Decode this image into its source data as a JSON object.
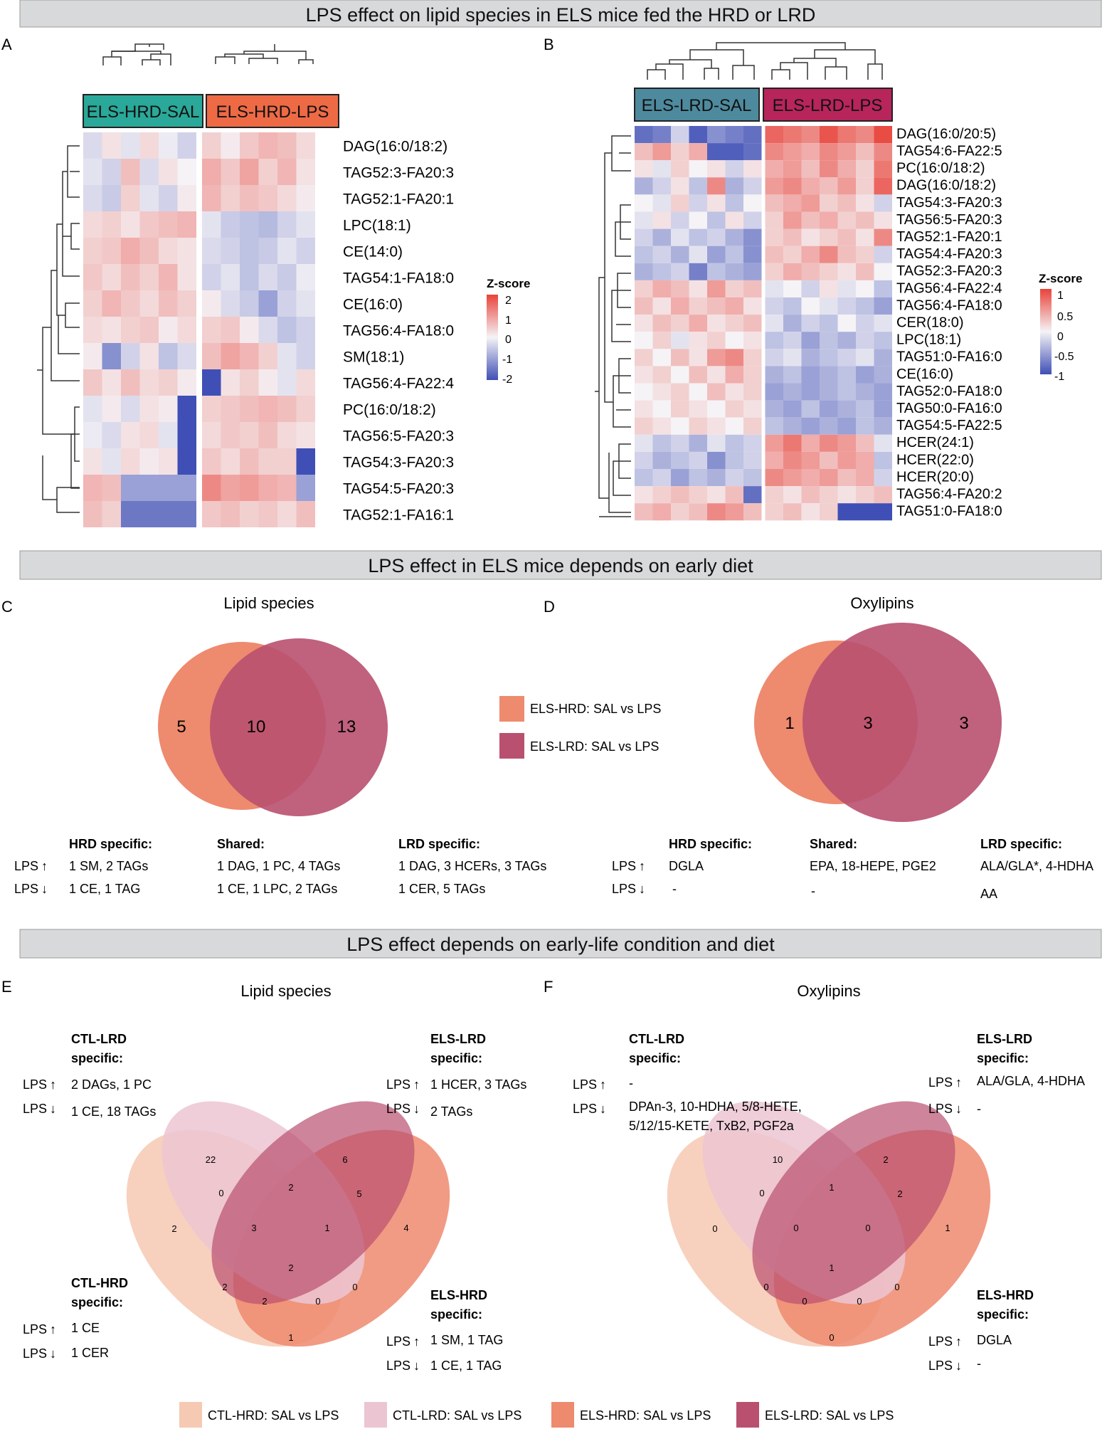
{
  "banners": [
    "LPS effect on lipid species in ELS mice fed the HRD or LRD",
    "LPS effect in ELS mice depends on early diet",
    "LPS effect depends on early-life condition and diet"
  ],
  "panel_letters": [
    "A",
    "B",
    "C",
    "D",
    "E",
    "F"
  ],
  "colors": {
    "banner_bg": "#d8d9da",
    "heat_low": "#3f4fb5",
    "heat_mid": "#f5f3f6",
    "heat_high": "#e8433a",
    "els_hrd": "#ee8a6e",
    "els_lrd": "#b9506f",
    "ctl_hrd": "#f6c9b3",
    "ctl_lrd": "#ecc5d2",
    "label_hrd_sal": "#2aa899",
    "label_hrd_lps": "#ee6a45",
    "label_lrd_sal": "#4e8a9e",
    "label_lrd_lps": "#b7255a"
  },
  "chart_data": [
    {
      "type": "heatmap",
      "panel": "A",
      "title": "",
      "groups": [
        "ELS-HRD-SAL",
        "ELS-HRD-LPS"
      ],
      "columns_per_group": [
        6,
        6
      ],
      "rows": [
        "DAG(16:0/18:2)",
        "TAG52:3-FA20:3",
        "TAG52:1-FA20:1",
        "LPC(18:1)",
        "CE(14:0)",
        "TAG54:1-FA18:0",
        "CE(16:0)",
        "TAG56:4-FA18:0",
        "SM(18:1)",
        "TAG56:4-FA22:4",
        "PC(16:0/18:2)",
        "TAG56:5-FA20:3",
        "TAG54:3-FA20:3",
        "TAG54:5-FA20:3",
        "TAG52:1-FA16:1"
      ],
      "legend_title": "Z-score",
      "scale_ticks": [
        "2",
        "1",
        "0",
        "-1",
        "-2"
      ],
      "scale_range": [
        -2,
        2
      ],
      "values": [
        [
          -0.3,
          0.2,
          -0.2,
          0.3,
          -0.1,
          -0.4,
          0.4,
          0.1,
          0.5,
          0.7,
          0.6,
          0.3
        ],
        [
          -0.2,
          -0.4,
          0.6,
          -0.3,
          0.2,
          0.0,
          0.8,
          0.5,
          0.9,
          0.4,
          0.7,
          0.2
        ],
        [
          -0.3,
          -0.5,
          0.4,
          -0.2,
          -0.4,
          0.1,
          0.7,
          0.4,
          0.6,
          0.5,
          0.3,
          0.1
        ],
        [
          0.3,
          0.4,
          0.2,
          0.5,
          0.6,
          0.7,
          -0.2,
          -0.5,
          -0.6,
          -0.7,
          -0.4,
          -0.2
        ],
        [
          0.4,
          0.5,
          0.8,
          0.6,
          0.3,
          0.2,
          -0.3,
          -0.4,
          -0.6,
          -0.5,
          -0.2,
          -0.4
        ],
        [
          0.5,
          0.3,
          0.6,
          0.4,
          0.7,
          0.2,
          -0.4,
          -0.2,
          -0.6,
          -0.3,
          -0.5,
          -0.1
        ],
        [
          0.4,
          0.7,
          0.5,
          0.3,
          0.6,
          0.4,
          0.1,
          -0.3,
          -0.5,
          -1.0,
          -0.4,
          -0.2
        ],
        [
          0.3,
          0.2,
          0.4,
          0.5,
          0.1,
          0.3,
          0.4,
          0.5,
          0.1,
          -0.3,
          -0.6,
          -0.4
        ],
        [
          0.1,
          -1.2,
          -0.4,
          0.2,
          -0.6,
          -0.3,
          0.6,
          0.9,
          0.7,
          0.4,
          -0.2,
          -0.4
        ],
        [
          0.5,
          0.2,
          0.6,
          0.3,
          0.4,
          0.1,
          -2.0,
          0.2,
          0.4,
          0.1,
          -0.2,
          0.3
        ],
        [
          -0.2,
          0.1,
          -0.3,
          0.2,
          0.1,
          -2.0,
          0.4,
          0.5,
          0.6,
          0.7,
          0.6,
          0.4
        ],
        [
          -0.1,
          -0.3,
          0.2,
          0.3,
          -0.2,
          -2.0,
          0.3,
          0.5,
          0.4,
          0.6,
          0.3,
          0.2
        ],
        [
          0.2,
          -0.2,
          0.3,
          0.1,
          0.2,
          -2.0,
          0.5,
          0.3,
          0.6,
          0.4,
          0.4,
          -2.0
        ],
        [
          0.7,
          0.6,
          -1.0,
          -1.0,
          -1.0,
          -1.0,
          1.2,
          0.9,
          1.0,
          0.8,
          0.7,
          -1.0
        ],
        [
          0.6,
          0.4,
          -1.5,
          -1.5,
          -1.5,
          -1.5,
          0.5,
          0.6,
          0.4,
          0.5,
          0.3,
          0.6
        ]
      ]
    },
    {
      "type": "heatmap",
      "panel": "B",
      "title": "",
      "groups": [
        "ELS-LRD-SAL",
        "ELS-LRD-LPS"
      ],
      "columns_per_group": [
        7,
        7
      ],
      "rows": [
        "DAG(16:0/20:5)",
        "TAG54:6-FA22:5",
        "PC(16:0/18:2)",
        "DAG(16:0/18:2)",
        "TAG54:3-FA20:3",
        "TAG56:5-FA20:3",
        "TAG52:1-FA20:1",
        "TAG54:4-FA20:3",
        "TAG52:3-FA20:3",
        "TAG56:4-FA22:4",
        "TAG56:4-FA18:0",
        "CER(18:0)",
        "LPC(18:1)",
        "TAG51:0-FA16:0",
        "CE(16:0)",
        "TAG52:0-FA18:0",
        "TAG50:0-FA16:0",
        "TAG54:5-FA22:5",
        "HCER(24:1)",
        "HCER(22:0)",
        "HCER(20:0)",
        "TAG56:4-FA20:2",
        "TAG51:0-FA18:0"
      ],
      "legend_title": "Z-score",
      "scale_ticks": [
        "1",
        "0.5",
        "0",
        "-0.5",
        "-1"
      ],
      "scale_range": [
        -1,
        1
      ],
      "values": [
        [
          -0.8,
          -0.7,
          -0.2,
          -0.9,
          -0.6,
          -0.7,
          -0.8,
          0.8,
          0.7,
          0.6,
          0.9,
          0.7,
          0.6,
          0.95
        ],
        [
          0.3,
          0.5,
          0.2,
          0.4,
          -0.9,
          -0.9,
          -0.8,
          0.6,
          0.5,
          0.4,
          0.6,
          0.5,
          0.3,
          0.6
        ],
        [
          0.1,
          -0.1,
          0.2,
          0.0,
          0.1,
          -0.2,
          0.1,
          0.4,
          0.5,
          0.3,
          0.6,
          0.4,
          0.2,
          0.7
        ],
        [
          -0.4,
          -0.2,
          0.1,
          -0.3,
          0.6,
          -0.4,
          -0.2,
          0.5,
          0.6,
          0.4,
          0.3,
          0.5,
          0.2,
          0.8
        ],
        [
          0.0,
          -0.1,
          0.2,
          -0.2,
          0.1,
          -0.3,
          0.0,
          0.3,
          0.4,
          0.5,
          0.2,
          0.3,
          0.1,
          -0.2
        ],
        [
          -0.1,
          0.1,
          -0.2,
          0.0,
          -0.3,
          0.1,
          -0.2,
          0.2,
          0.5,
          0.3,
          0.4,
          0.2,
          0.3,
          0.1
        ],
        [
          -0.2,
          -0.4,
          -0.1,
          -0.3,
          -0.2,
          -0.4,
          -0.6,
          0.2,
          0.3,
          0.1,
          0.2,
          0.3,
          0.1,
          0.6
        ],
        [
          -0.3,
          -0.2,
          -0.4,
          -0.1,
          -0.5,
          -0.3,
          -0.6,
          0.3,
          0.2,
          0.4,
          0.6,
          0.3,
          0.2,
          -0.2
        ],
        [
          -0.4,
          -0.3,
          -0.2,
          -0.7,
          -0.3,
          -0.4,
          -0.5,
          0.2,
          0.4,
          0.3,
          0.2,
          0.1,
          0.3,
          0.0
        ],
        [
          0.2,
          0.4,
          0.3,
          0.1,
          0.5,
          0.2,
          0.3,
          -0.1,
          0.0,
          -0.2,
          0.1,
          -0.1,
          0.0,
          -0.3
        ],
        [
          0.3,
          0.1,
          0.4,
          0.2,
          0.3,
          0.4,
          0.1,
          -0.2,
          -0.3,
          0.0,
          -0.1,
          -0.2,
          -0.3,
          -0.5
        ],
        [
          0.1,
          0.3,
          0.2,
          0.4,
          0.1,
          0.2,
          0.3,
          -0.1,
          -0.4,
          -0.2,
          -0.3,
          0.0,
          -0.2,
          -0.1
        ],
        [
          0.0,
          0.2,
          -0.1,
          0.1,
          0.2,
          0.0,
          0.1,
          -0.3,
          -0.2,
          -0.5,
          -0.3,
          -0.4,
          -0.2,
          -0.3
        ],
        [
          0.2,
          0.0,
          0.3,
          0.1,
          0.5,
          0.6,
          0.2,
          -0.2,
          -0.1,
          -0.4,
          -0.3,
          -0.2,
          -0.1,
          -0.4
        ],
        [
          0.1,
          0.2,
          0.0,
          0.3,
          0.1,
          0.4,
          0.2,
          -0.4,
          -0.3,
          -0.5,
          -0.4,
          -0.3,
          -0.5,
          -0.4
        ],
        [
          0.0,
          0.1,
          0.2,
          0.0,
          0.3,
          0.1,
          0.2,
          -0.5,
          -0.4,
          -0.5,
          -0.4,
          -0.3,
          -0.4,
          -0.5
        ],
        [
          0.1,
          0.0,
          0.2,
          0.1,
          0.0,
          0.2,
          0.1,
          -0.4,
          -0.5,
          -0.3,
          -0.5,
          -0.4,
          -0.3,
          -0.5
        ],
        [
          0.2,
          0.1,
          0.0,
          0.2,
          0.1,
          0.0,
          0.2,
          -0.3,
          -0.4,
          -0.5,
          -0.4,
          -0.5,
          -0.3,
          -0.4
        ],
        [
          -0.1,
          -0.3,
          -0.2,
          -0.4,
          -0.1,
          -0.3,
          -0.2,
          0.5,
          0.7,
          0.4,
          0.6,
          0.5,
          0.3,
          -0.1
        ],
        [
          -0.2,
          -0.4,
          -0.3,
          -0.2,
          -0.6,
          -0.3,
          -0.2,
          0.4,
          0.6,
          0.5,
          0.3,
          0.5,
          0.4,
          -0.3
        ],
        [
          -0.3,
          -0.2,
          -0.5,
          -0.3,
          -0.4,
          -0.2,
          -0.3,
          0.6,
          0.5,
          0.4,
          0.5,
          0.3,
          0.4,
          -0.2
        ],
        [
          0.1,
          0.2,
          0.3,
          0.2,
          0.1,
          0.3,
          -0.8,
          0.2,
          0.1,
          0.3,
          0.2,
          0.1,
          0.2,
          0.3
        ],
        [
          0.3,
          0.4,
          0.2,
          0.3,
          0.6,
          0.5,
          0.3,
          0.2,
          0.3,
          0.1,
          0.2,
          -1.0,
          -1.0,
          -1.0
        ]
      ]
    },
    {
      "type": "venn",
      "panel": "C",
      "title": "Lipid species",
      "sets": [
        "ELS-HRD: SAL vs LPS",
        "ELS-LRD: SAL vs LPS"
      ],
      "regions": {
        "HRD_only": 5,
        "shared": 10,
        "LRD_only": 13
      }
    },
    {
      "type": "venn",
      "panel": "D",
      "title": "Oxylipins",
      "sets": [
        "ELS-HRD: SAL vs LPS",
        "ELS-LRD: SAL vs LPS"
      ],
      "regions": {
        "HRD_only": 1,
        "shared": 3,
        "LRD_only": 3
      }
    },
    {
      "type": "venn",
      "panel": "E",
      "title": "Lipid species",
      "sets": [
        "CTL-HRD: SAL vs LPS",
        "CTL-LRD: SAL vs LPS",
        "ELS-HRD: SAL vs LPS",
        "ELS-LRD: SAL vs LPS"
      ],
      "region_values": [
        "22",
        "6",
        "2",
        "4",
        "0",
        "2",
        "5",
        "3",
        "1",
        "2",
        "0",
        "2",
        "2",
        "0",
        "1"
      ]
    },
    {
      "type": "venn",
      "panel": "F",
      "title": "Oxylipins",
      "sets": [
        "CTL-HRD: SAL vs LPS",
        "CTL-LRD: SAL vs LPS",
        "ELS-HRD: SAL vs LPS",
        "ELS-LRD: SAL vs LPS"
      ],
      "region_values": [
        "10",
        "2",
        "0",
        "1",
        "0",
        "1",
        "2",
        "0",
        "0",
        "1",
        "0",
        "0",
        "0",
        "0",
        "0"
      ]
    }
  ],
  "venn_legend_cd": [
    "ELS-HRD: SAL vs LPS",
    "ELS-LRD: SAL vs LPS"
  ],
  "venn_legend_ef": [
    "CTL-HRD: SAL vs LPS",
    "CTL-LRD: SAL vs LPS",
    "ELS-HRD: SAL vs LPS",
    "ELS-LRD: SAL vs LPS"
  ],
  "lps_label": "LPS",
  "up_arrow": "↑",
  "down_arrow": "↓",
  "panel_c_tables": {
    "hrd": {
      "heading": "HRD specific:",
      "up": "1 SM, 2 TAGs",
      "down": "1 CE, 1 TAG"
    },
    "shared": {
      "heading": "Shared:",
      "up": "1 DAG, 1 PC, 4 TAGs",
      "down": "1 CE, 1 LPC, 2 TAGs"
    },
    "lrd": {
      "heading": "LRD specific:",
      "up": "1 DAG, 3 HCERs, 3 TAGs",
      "down": "1 CER, 5 TAGs"
    }
  },
  "panel_d_tables": {
    "hrd": {
      "heading": "HRD specific:",
      "up": "DGLA",
      "down": "-"
    },
    "shared": {
      "heading": "Shared:",
      "up": "EPA, 18-HEPE, PGE2",
      "down": "-"
    },
    "lrd": {
      "heading": "LRD specific:",
      "up": "ALA/GLA*, 4-HDHA",
      "down": "AA"
    }
  },
  "panel_e_notes": {
    "ctl_lrd": {
      "heading1": "CTL-LRD",
      "heading2": "specific:",
      "up": "2 DAGs, 1 PC",
      "down": "1 CE, 18 TAGs"
    },
    "els_lrd": {
      "heading1": "ELS-LRD",
      "heading2": "specific:",
      "up": "1 HCER, 3 TAGs",
      "down": "2 TAGs"
    },
    "ctl_hrd": {
      "heading1": "CTL-HRD",
      "heading2": "specific:",
      "up": "1 CE",
      "down": "1 CER"
    },
    "els_hrd": {
      "heading1": "ELS-HRD",
      "heading2": "specific:",
      "up": "1 SM, 1 TAG",
      "down": "1 CE, 1 TAG"
    }
  },
  "panel_f_notes": {
    "ctl_lrd": {
      "heading1": "CTL-LRD",
      "heading2": "specific:",
      "up": "-",
      "down": "DPAn-3, 10-HDHA, 5/8-HETE,",
      "down2": "5/12/15-KETE, TxB2, PGF2a"
    },
    "els_lrd": {
      "heading1": "ELS-LRD",
      "heading2": "specific:",
      "up": "ALA/GLA, 4-HDHA",
      "down": "-"
    },
    "els_hrd": {
      "heading1": "ELS-HRD",
      "heading2": "specific:",
      "up": "DGLA",
      "down": "-"
    }
  }
}
